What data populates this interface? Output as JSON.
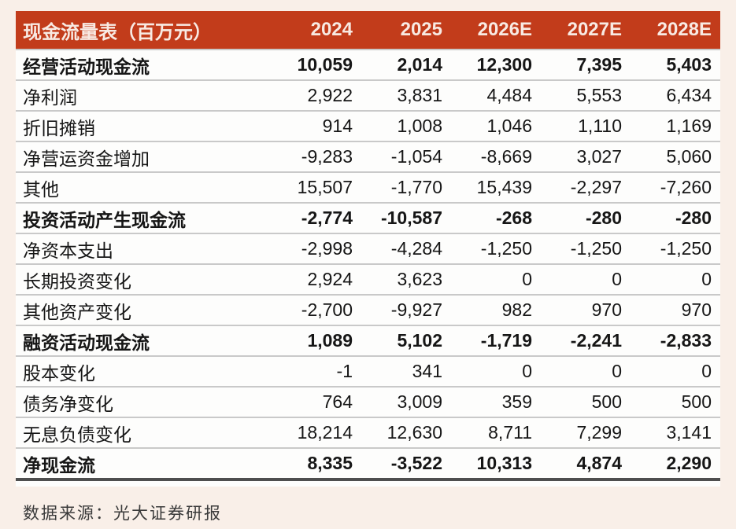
{
  "page": {
    "background_color": "#F9EFE8"
  },
  "colors": {
    "header_band": "#C23C1B",
    "header_text": "#F8EAE3",
    "body_text": "#161616",
    "row_separator": "#C9C9C9",
    "bottom_rule": "#4E4E4E",
    "table_background": "#FDFDFC"
  },
  "chart_data": {
    "type": "table",
    "title": "现金流量表（百万元）",
    "columns": [
      "2024",
      "2025",
      "2026E",
      "2027E",
      "2028E"
    ],
    "rows": [
      {
        "label": "经营活动现金流",
        "bold": true,
        "values": [
          10059,
          2014,
          12300,
          7395,
          5403
        ]
      },
      {
        "label": "净利润",
        "bold": false,
        "values": [
          2922,
          3831,
          4484,
          5553,
          6434
        ]
      },
      {
        "label": "折旧摊销",
        "bold": false,
        "values": [
          914,
          1008,
          1046,
          1110,
          1169
        ]
      },
      {
        "label": "净营运资金增加",
        "bold": false,
        "values": [
          -9283,
          -1054,
          -8669,
          3027,
          5060
        ]
      },
      {
        "label": "其他",
        "bold": false,
        "values": [
          15507,
          -1770,
          15439,
          -2297,
          -7260
        ]
      },
      {
        "label": "投资活动产生现金流",
        "bold": true,
        "values": [
          -2774,
          -10587,
          -268,
          -280,
          -280
        ]
      },
      {
        "label": "净资本支出",
        "bold": false,
        "values": [
          -2998,
          -4284,
          -1250,
          -1250,
          -1250
        ]
      },
      {
        "label": "长期投资变化",
        "bold": false,
        "values": [
          2924,
          3623,
          0,
          0,
          0
        ]
      },
      {
        "label": "其他资产变化",
        "bold": false,
        "values": [
          -2700,
          -9927,
          982,
          970,
          970
        ]
      },
      {
        "label": "融资活动现金流",
        "bold": true,
        "values": [
          1089,
          5102,
          -1719,
          -2241,
          -2833
        ]
      },
      {
        "label": "股本变化",
        "bold": false,
        "values": [
          -1,
          341,
          0,
          0,
          0
        ]
      },
      {
        "label": "债务净变化",
        "bold": false,
        "values": [
          764,
          3009,
          359,
          500,
          500
        ]
      },
      {
        "label": "无息负债变化",
        "bold": false,
        "values": [
          18214,
          12630,
          8711,
          7299,
          3141
        ]
      },
      {
        "label": "净现金流",
        "bold": true,
        "values": [
          8335,
          -3522,
          10313,
          4874,
          2290
        ]
      }
    ]
  },
  "footer": {
    "source_text": "数据来源：光大证券研报"
  }
}
